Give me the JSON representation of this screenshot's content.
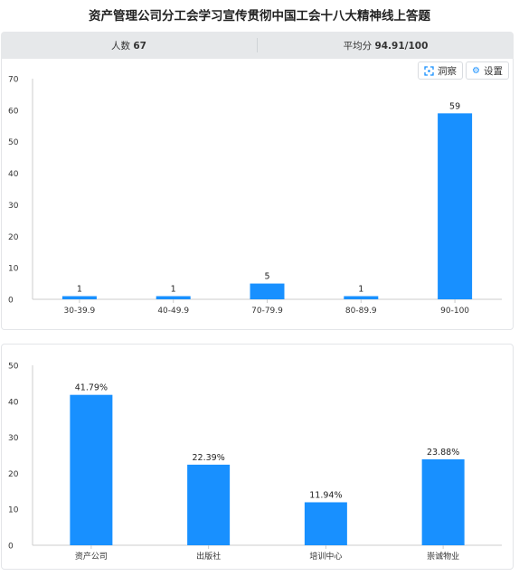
{
  "header": {
    "title": "资产管理公司分工会学习宣传贯彻中国工会十八大精神线上答题"
  },
  "stats": {
    "count_label": "人数",
    "count_value": "67",
    "avg_label": "平均分",
    "avg_value": "94.91/100"
  },
  "toolbar": {
    "insight_label": "洞察",
    "insight_icon": "insight-icon",
    "settings_label": "设置",
    "settings_icon": "gear-icon"
  },
  "colors": {
    "bar": "#1890ff",
    "axis": "#cccccc",
    "tick_text": "#333333"
  },
  "chart_data": [
    {
      "type": "bar",
      "categories": [
        "30-39.9",
        "40-49.9",
        "70-79.9",
        "80-89.9",
        "90-100"
      ],
      "values": [
        1,
        1,
        5,
        1,
        59
      ],
      "data_labels": [
        "1",
        "1",
        "5",
        "1",
        "59"
      ],
      "title": "",
      "xlabel": "",
      "ylabel": "",
      "ylim": [
        0,
        70
      ],
      "yticks": [
        0,
        10,
        20,
        30,
        40,
        50,
        60,
        70
      ],
      "grid": false
    },
    {
      "type": "bar",
      "categories": [
        "资产公司",
        "出版社",
        "培训中心",
        "崇诚物业"
      ],
      "values": [
        41.79,
        22.39,
        11.94,
        23.88
      ],
      "data_labels": [
        "41.79%",
        "22.39%",
        "11.94%",
        "23.88%"
      ],
      "title": "",
      "xlabel": "",
      "ylabel": "",
      "ylim": [
        0,
        50
      ],
      "yticks": [
        0,
        10,
        20,
        30,
        40,
        50
      ],
      "grid": false
    }
  ]
}
